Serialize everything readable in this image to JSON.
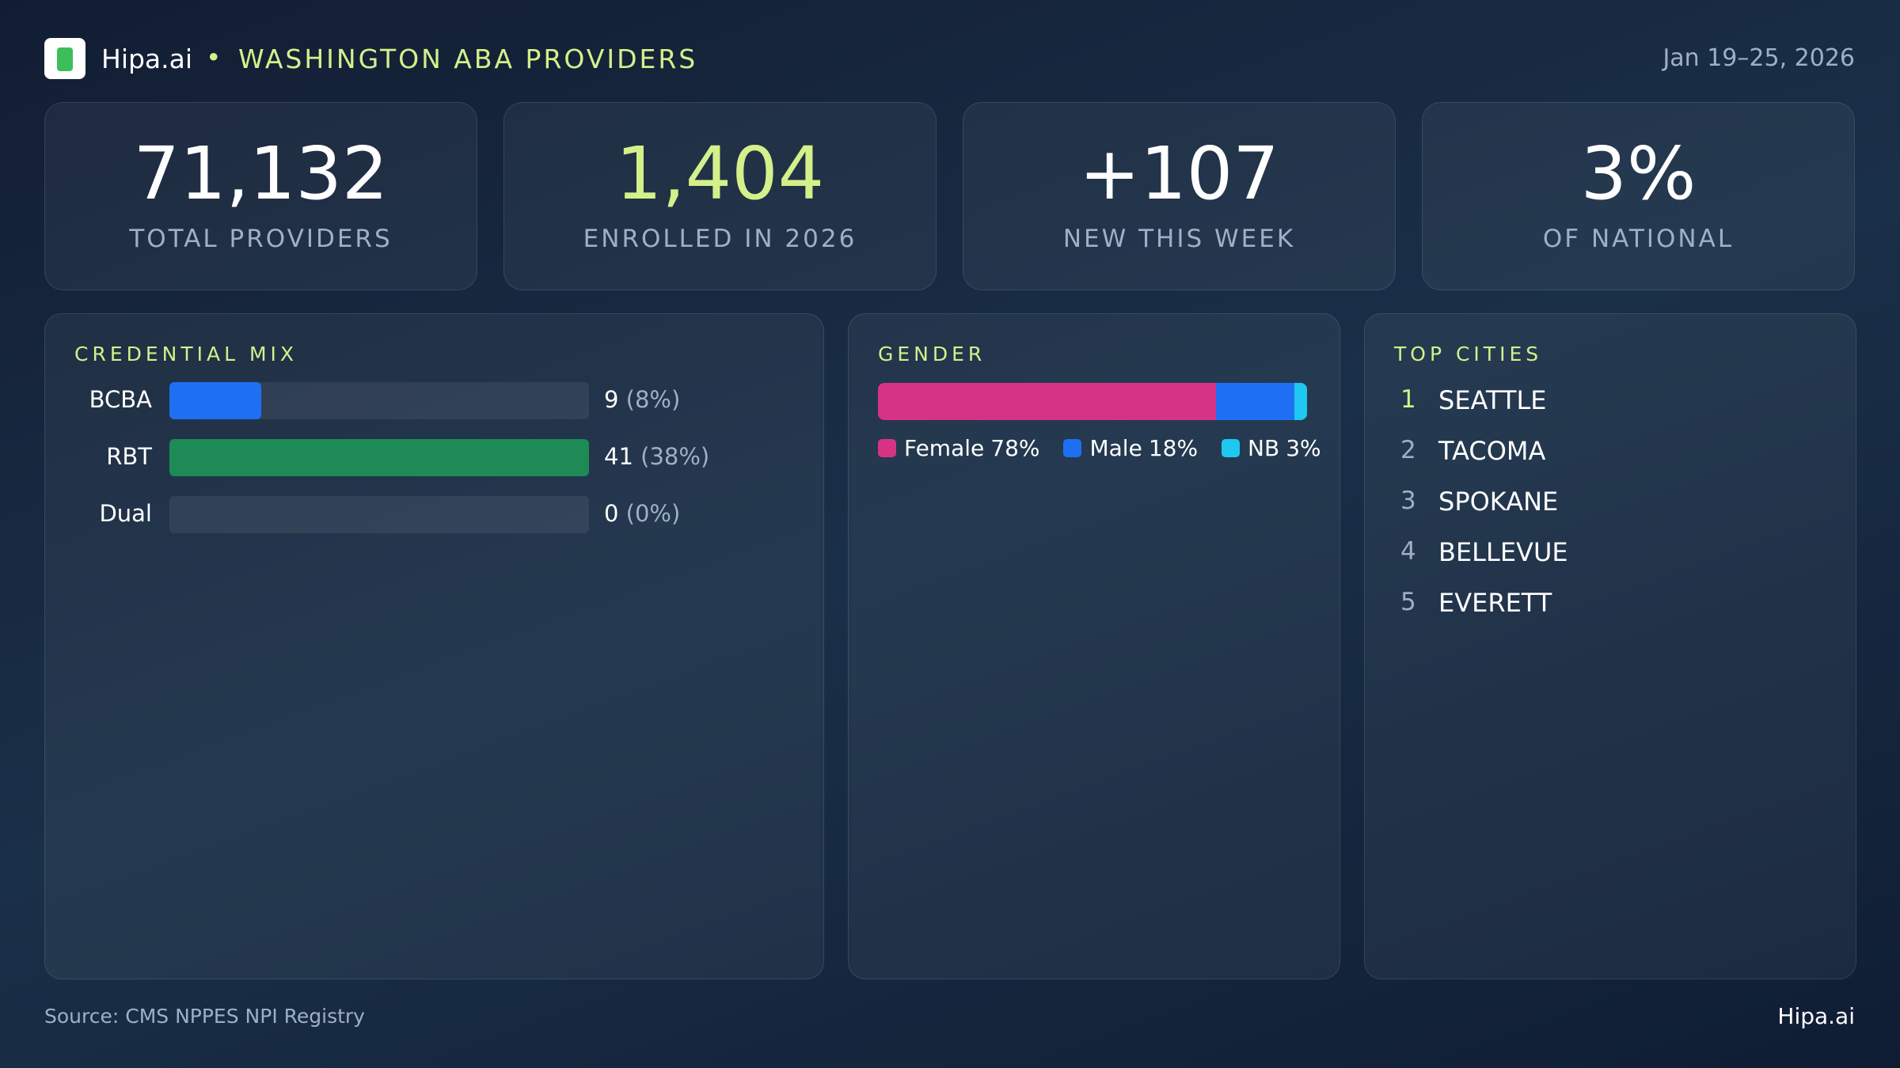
{
  "header": {
    "brand": "Hipa.ai",
    "separator": "•",
    "title": "WASHINGTON ABA PROVIDERS",
    "date": "Jan 19–25, 2026"
  },
  "kpis": [
    {
      "value": "71,132",
      "label": "TOTAL PROVIDERS",
      "color": "#ffffff"
    },
    {
      "value": "1,404",
      "label": "ENROLLED IN 2026",
      "color": "#d4f08a"
    },
    {
      "value": "+107",
      "label": "NEW THIS WEEK",
      "color": "#ffffff"
    },
    {
      "value": "3%",
      "label": "OF NATIONAL",
      "color": "#ffffff"
    }
  ],
  "credential_mix": {
    "title": "CREDENTIAL MIX",
    "rows": [
      {
        "name": "BCBA",
        "count": 9,
        "share_label": "(8%)",
        "color": "#1f6ff2"
      },
      {
        "name": "RBT",
        "count": 41,
        "share_label": "(38%)",
        "color": "#1e8a55"
      },
      {
        "name": "Dual",
        "count": 0,
        "share_label": "(0%)",
        "color": "#1f6ff2"
      }
    ]
  },
  "gender": {
    "title": "GENDER",
    "segments": [
      {
        "name": "Female",
        "value": 78,
        "label": "78%",
        "color": "#d63384"
      },
      {
        "name": "Male",
        "value": 18,
        "label": "18%",
        "color": "#1f6ff2"
      },
      {
        "name": "NB",
        "value": 3,
        "label": "3%",
        "color": "#1ec8f0"
      }
    ]
  },
  "top_cities": {
    "title": "TOP CITIES",
    "items": [
      {
        "rank": "1",
        "city": "SEATTLE"
      },
      {
        "rank": "2",
        "city": "TACOMA"
      },
      {
        "rank": "3",
        "city": "SPOKANE"
      },
      {
        "rank": "4",
        "city": "BELLEVUE"
      },
      {
        "rank": "5",
        "city": "EVERETT"
      }
    ]
  },
  "footer": {
    "source": "Source: CMS NPPES NPI Registry",
    "brand": "Hipa.ai"
  }
}
